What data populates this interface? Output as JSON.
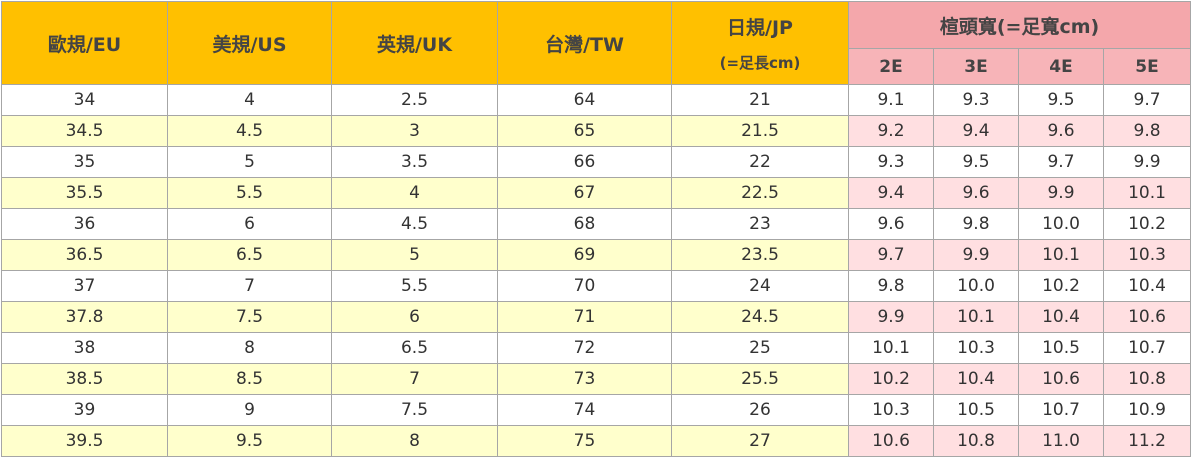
{
  "header": {
    "columns": [
      "歐規/EU",
      "美規/US",
      "英規/UK",
      "台灣/TW"
    ],
    "jp": [
      "日規/JP",
      "(=足長cm)"
    ],
    "width_title": "楦頭寬(=足寬cm)",
    "width_columns": [
      "2E",
      "3E",
      "4E",
      "5E"
    ]
  },
  "rows": [
    [
      "34",
      "4",
      "2.5",
      "64",
      "21",
      "9.1",
      "9.3",
      "9.5",
      "9.7"
    ],
    [
      "34.5",
      "4.5",
      "3",
      "65",
      "21.5",
      "9.2",
      "9.4",
      "9.6",
      "9.8"
    ],
    [
      "35",
      "5",
      "3.5",
      "66",
      "22",
      "9.3",
      "9.5",
      "9.7",
      "9.9"
    ],
    [
      "35.5",
      "5.5",
      "4",
      "67",
      "22.5",
      "9.4",
      "9.6",
      "9.9",
      "10.1"
    ],
    [
      "36",
      "6",
      "4.5",
      "68",
      "23",
      "9.6",
      "9.8",
      "10.0",
      "10.2"
    ],
    [
      "36.5",
      "6.5",
      "5",
      "69",
      "23.5",
      "9.7",
      "9.9",
      "10.1",
      "10.3"
    ],
    [
      "37",
      "7",
      "5.5",
      "70",
      "24",
      "9.8",
      "10.0",
      "10.2",
      "10.4"
    ],
    [
      "37.8",
      "7.5",
      "6",
      "71",
      "24.5",
      "9.9",
      "10.1",
      "10.4",
      "10.6"
    ],
    [
      "38",
      "8",
      "6.5",
      "72",
      "25",
      "10.1",
      "10.3",
      "10.5",
      "10.7"
    ],
    [
      "38.5",
      "8.5",
      "7",
      "73",
      "25.5",
      "10.2",
      "10.4",
      "10.6",
      "10.8"
    ],
    [
      "39",
      "9",
      "7.5",
      "74",
      "26",
      "10.3",
      "10.5",
      "10.7",
      "10.9"
    ],
    [
      "39.5",
      "9.5",
      "8",
      "75",
      "27",
      "10.6",
      "10.8",
      "11.0",
      "11.2"
    ]
  ]
}
